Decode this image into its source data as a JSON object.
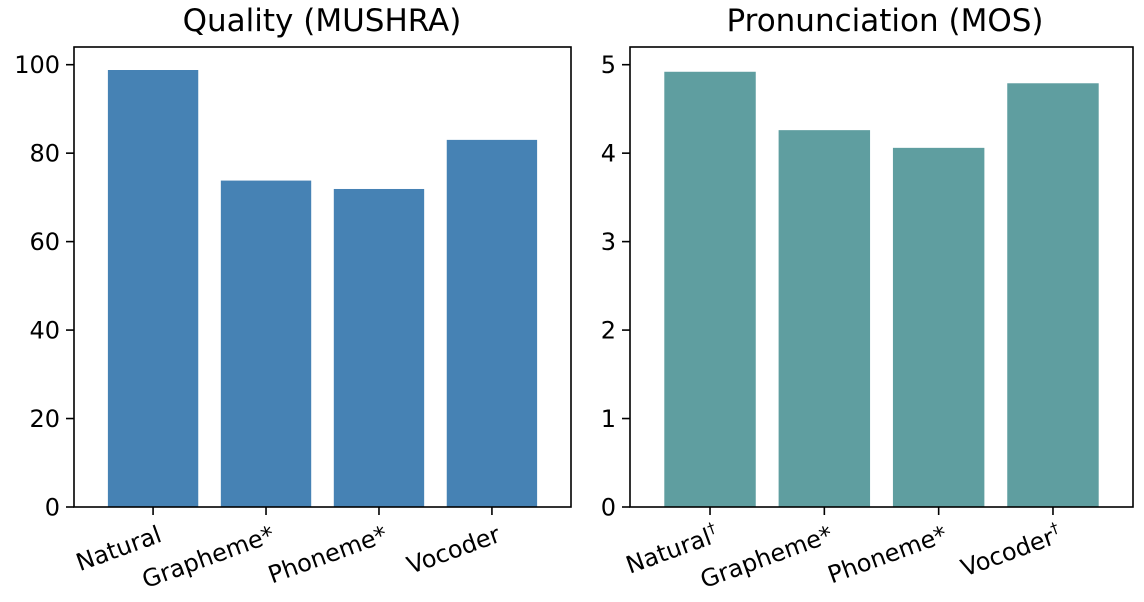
{
  "chart_data": [
    {
      "type": "bar",
      "title": "Quality (MUSHRA)",
      "categories": [
        "Natural",
        "Grapheme*",
        "Phoneme*",
        "Vocoder"
      ],
      "values": [
        98.8,
        73.8,
        71.9,
        83.0
      ],
      "ylim": [
        0,
        104
      ],
      "yticks": [
        0,
        20,
        40,
        60,
        80,
        100
      ],
      "bar_color": "#4682b4",
      "grid": false,
      "xtick_rotation": "20deg"
    },
    {
      "type": "bar",
      "title": "Pronunciation (MOS)",
      "categories": [
        "Natural†",
        "Grapheme*",
        "Phoneme*",
        "Vocoder†"
      ],
      "values": [
        4.92,
        4.26,
        4.06,
        4.79
      ],
      "ylim": [
        0,
        5.2
      ],
      "yticks": [
        0,
        1,
        2,
        3,
        4,
        5
      ],
      "bar_color": "#5f9ea0",
      "grid": false,
      "xtick_rotation": "20deg"
    }
  ]
}
